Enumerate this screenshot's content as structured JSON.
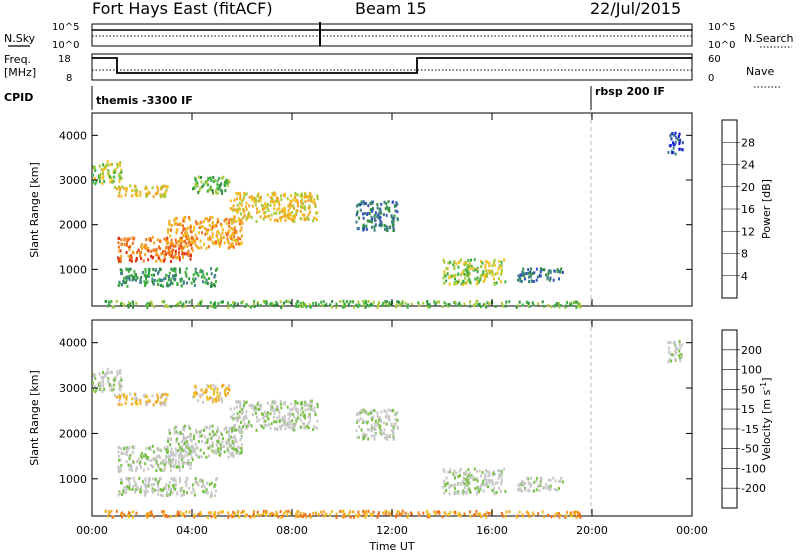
{
  "header": {
    "station": "Fort Hays East (fitACF)",
    "beam": "Beam 15",
    "date": "22/Jul/2015"
  },
  "side_labels": {
    "nsky": "N.Sky",
    "nsearch": "N.Search",
    "freq_line1": "Freq.",
    "freq_line2": "[MHz]",
    "nave": "Nave",
    "cpid": "CPID",
    "nsky_top": "10^5",
    "nsky_bot": "10^0",
    "nsearch_top": "10^5",
    "nsearch_bot": "10^0",
    "freq_top": "18",
    "freq_bot": "8",
    "nave_top": "60",
    "nave_bot": "0"
  },
  "cpid": {
    "left_label": "themis -3300 IF",
    "right_label": "rbsp 200 IF"
  },
  "chart_data": [
    {
      "type": "heatmap",
      "title": "",
      "xlabel": "Time UT",
      "ylabel": "Slant Range [km]",
      "x_ticks": [
        "00:00",
        "04:00",
        "08:00",
        "12:00",
        "16:00",
        "20:00",
        "00:00"
      ],
      "y_ticks": [
        "1000",
        "2000",
        "3000",
        "4000"
      ],
      "xlim_hours": [
        0,
        24
      ],
      "ylim_km": [
        180,
        4500
      ],
      "colorbar": {
        "label": "Power [dB]",
        "tick_labels": [
          "4",
          "8",
          "12",
          "16",
          "20",
          "24",
          "28"
        ],
        "colors": [
          "#1a1ae0",
          "#3050b8",
          "#3f7f86",
          "#2f8f3f",
          "#3cb040",
          "#a6c93a",
          "#f0c020",
          "#f5a623",
          "#f07020",
          "#e03010",
          "#e00000"
        ]
      },
      "echo_regions": [
        {
          "t0": 0.0,
          "t1": 1.2,
          "r0": 2950,
          "r1": 3450,
          "level": 5
        },
        {
          "t0": 0.8,
          "t1": 3.0,
          "r0": 2650,
          "r1": 2900,
          "level": 6
        },
        {
          "t0": 1.0,
          "t1": 4.0,
          "r0": 1200,
          "r1": 1750,
          "level": 8
        },
        {
          "t0": 3.0,
          "t1": 6.0,
          "r0": 1500,
          "r1": 2200,
          "level": 7
        },
        {
          "t0": 5.5,
          "t1": 9.0,
          "r0": 2100,
          "r1": 2750,
          "level": 6
        },
        {
          "t0": 1.0,
          "t1": 5.0,
          "r0": 650,
          "r1": 1050,
          "level": 3
        },
        {
          "t0": 4.0,
          "t1": 5.5,
          "r0": 2700,
          "r1": 3100,
          "level": 4
        },
        {
          "t0": 10.5,
          "t1": 12.2,
          "r0": 1900,
          "r1": 2550,
          "level": 2
        },
        {
          "t0": 14.0,
          "t1": 16.5,
          "r0": 700,
          "r1": 1250,
          "level": 5
        },
        {
          "t0": 17.0,
          "t1": 18.8,
          "r0": 750,
          "r1": 1050,
          "level": 2
        },
        {
          "t0": 0.5,
          "t1": 19.5,
          "r0": 180,
          "r1": 320,
          "level": 4
        },
        {
          "t0": 23.0,
          "t1": 23.6,
          "r0": 3600,
          "r1": 4100,
          "level": 1
        }
      ]
    },
    {
      "type": "heatmap",
      "title": "",
      "xlabel": "Time UT",
      "ylabel": "Slant Range [km]",
      "x_ticks": [
        "00:00",
        "04:00",
        "08:00",
        "12:00",
        "16:00",
        "20:00",
        "00:00"
      ],
      "y_ticks": [
        "1000",
        "2000",
        "3000",
        "4000"
      ],
      "xlim_hours": [
        0,
        24
      ],
      "ylim_km": [
        180,
        4500
      ],
      "colorbar": {
        "label_main": "Velocity [m s",
        "label_sup": "-1",
        "label_end": "]",
        "tick_labels": [
          "200",
          "100",
          "50",
          "15",
          "-15",
          "-50",
          "-100",
          "-200"
        ],
        "colors": [
          "#1a1ae0",
          "#2b4fb0",
          "#3a7a80",
          "#2f8f3f",
          "#77c043",
          "#c8c8c8",
          "#c8c8c8",
          "#f0c020",
          "#f5a623",
          "#f07020",
          "#e84010",
          "#e00000"
        ]
      },
      "echo_regions": [
        {
          "t0": 0.0,
          "t1": 1.2,
          "r0": 2950,
          "r1": 3450,
          "level": 5
        },
        {
          "t0": 0.8,
          "t1": 3.0,
          "r0": 2650,
          "r1": 2900,
          "level": 7
        },
        {
          "t0": 1.0,
          "t1": 4.0,
          "r0": 1200,
          "r1": 1750,
          "level": 5
        },
        {
          "t0": 3.0,
          "t1": 6.0,
          "r0": 1500,
          "r1": 2200,
          "level": 5
        },
        {
          "t0": 5.5,
          "t1": 9.0,
          "r0": 2100,
          "r1": 2750,
          "level": 5
        },
        {
          "t0": 1.0,
          "t1": 5.0,
          "r0": 650,
          "r1": 1050,
          "level": 5
        },
        {
          "t0": 4.0,
          "t1": 5.5,
          "r0": 2700,
          "r1": 3100,
          "level": 7
        },
        {
          "t0": 10.5,
          "t1": 12.2,
          "r0": 1900,
          "r1": 2550,
          "level": 5
        },
        {
          "t0": 14.0,
          "t1": 16.5,
          "r0": 700,
          "r1": 1250,
          "level": 5
        },
        {
          "t0": 17.0,
          "t1": 18.8,
          "r0": 750,
          "r1": 1050,
          "level": 5
        },
        {
          "t0": 0.5,
          "t1": 19.5,
          "r0": 180,
          "r1": 320,
          "level": 8
        },
        {
          "t0": 23.0,
          "t1": 23.6,
          "r0": 3600,
          "r1": 4100,
          "level": 5
        }
      ]
    }
  ]
}
